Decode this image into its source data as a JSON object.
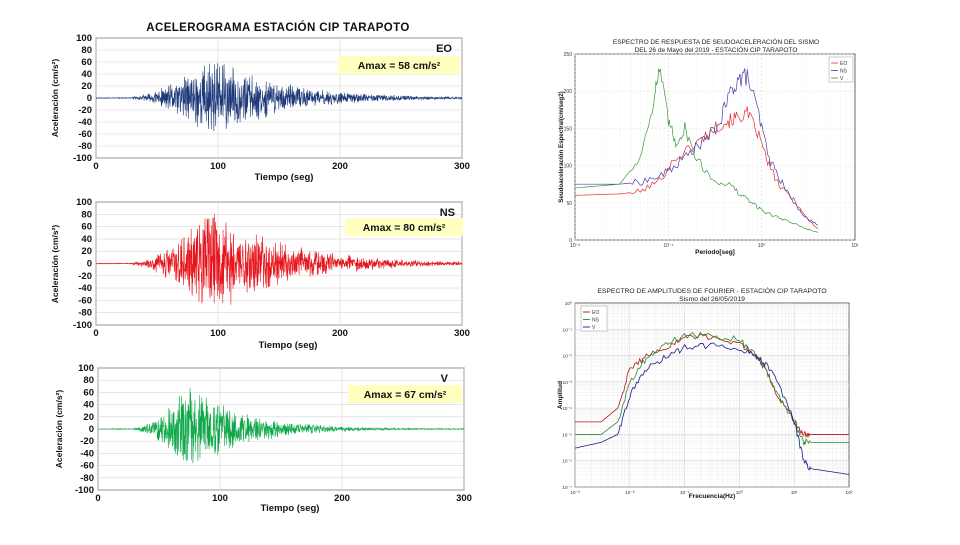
{
  "chart_data": [
    {
      "type": "line",
      "title": "ACELEROGRAMA ESTACIÓN CIP TARAPOTO",
      "component": "EO",
      "amax_label": "Amax = 58 cm/s²",
      "amax": 58,
      "xlabel": "Tiempo (seg)",
      "ylabel": "Aceleración (cm/s²)",
      "xlim": [
        0,
        300
      ],
      "ylim": [
        -100,
        100
      ],
      "xticks": [
        "0",
        "100",
        "200",
        "300"
      ],
      "yticks": [
        "100",
        "80",
        "60",
        "40",
        "20",
        "0",
        "-20",
        "-40",
        "-60",
        "-80",
        "-100"
      ],
      "color": "#1f3a7a",
      "signal": {
        "start": 30,
        "peak_time": 95,
        "amplitude": 58,
        "decay": 55,
        "seed": 11
      }
    },
    {
      "type": "line",
      "component": "NS",
      "amax_label": "Amax = 80 cm/s²",
      "amax": 80,
      "xlabel": "Tiempo (seg)",
      "ylabel": "Aceleración (cm/s²)",
      "xlim": [
        0,
        300
      ],
      "ylim": [
        -100,
        100
      ],
      "xticks": [
        "0",
        "100",
        "200",
        "300"
      ],
      "yticks": [
        "100",
        "80",
        "60",
        "40",
        "20",
        "0",
        "-20",
        "-40",
        "-60",
        "-80",
        "-100"
      ],
      "color": "#e8141c",
      "signal": {
        "start": 30,
        "peak_time": 95,
        "amplitude": 80,
        "decay": 60,
        "seed": 23
      }
    },
    {
      "type": "line",
      "component": "V",
      "amax_label": "Amax = 67 cm/s²",
      "amax": 67,
      "xlabel": "Tiempo (seg)",
      "ylabel": "Aceleración (cm/s²)",
      "xlim": [
        0,
        300
      ],
      "ylim": [
        -100,
        100
      ],
      "xticks": [
        "0",
        "100",
        "200",
        "300"
      ],
      "yticks": [
        "100",
        "80",
        "60",
        "40",
        "20",
        "0",
        "-20",
        "-40",
        "-60",
        "-80",
        "-100"
      ],
      "color": "#10a84a",
      "signal": {
        "start": 30,
        "peak_time": 75,
        "amplitude": 67,
        "decay": 45,
        "seed": 37
      }
    },
    {
      "type": "line",
      "title": "ESPECTRO DE RESPUESTA DE SEUDOACELERACIÓN DEL SISMO",
      "subtitle": "DEL 26 de Mayo del 2019 - ESTACIÓN CIP TARAPOTO",
      "xlabel": "Periodo[seg]",
      "ylabel": "Seudoaceleración Espectral(cm/seg2)",
      "xscale": "log",
      "xlim": [
        0.01,
        10
      ],
      "ylim": [
        0,
        250
      ],
      "yticks": [
        "0",
        "50",
        "100",
        "150",
        "200",
        "250"
      ],
      "xticks": [
        "10⁻²",
        "10⁻¹",
        "10⁰",
        "10¹"
      ],
      "legend_position": "top-right",
      "series": [
        {
          "name": "EO",
          "color": "#e03030",
          "x": [
            0.01,
            0.03,
            0.05,
            0.08,
            0.12,
            0.18,
            0.25,
            0.35,
            0.45,
            0.55,
            0.7,
            0.9,
            1.2,
            1.6,
            2.2,
            3.0,
            4.0
          ],
          "y": [
            60,
            62,
            65,
            80,
            110,
            125,
            140,
            155,
            160,
            165,
            170,
            145,
            100,
            70,
            55,
            30,
            15
          ]
        },
        {
          "name": "NS",
          "color": "#4b3fa8",
          "x": [
            0.01,
            0.03,
            0.05,
            0.08,
            0.12,
            0.18,
            0.25,
            0.35,
            0.45,
            0.55,
            0.7,
            0.9,
            1.2,
            1.6,
            2.2,
            3.0,
            4.0
          ],
          "y": [
            75,
            75,
            78,
            85,
            100,
            120,
            135,
            155,
            195,
            215,
            220,
            175,
            110,
            80,
            50,
            30,
            20
          ]
        },
        {
          "name": "V",
          "color": "#3a9a3a",
          "x": [
            0.01,
            0.03,
            0.05,
            0.07,
            0.08,
            0.1,
            0.12,
            0.15,
            0.2,
            0.3,
            0.45,
            0.6,
            0.8,
            1.0,
            1.5,
            2.0,
            3.0,
            4.0
          ],
          "y": [
            70,
            75,
            110,
            190,
            230,
            160,
            130,
            150,
            110,
            80,
            75,
            60,
            50,
            40,
            30,
            25,
            15,
            10
          ]
        }
      ]
    },
    {
      "type": "line",
      "title": "ESPECTRO DE AMPLITUDES DE FOURIER - ESTACIÓN CIP TARAPOTO",
      "subtitle": "Sismo del 26/05/2019",
      "xlabel": "Frecuencia(Hz)",
      "ylabel": "Amplitud",
      "xscale": "log",
      "yscale": "log",
      "xlim": [
        0.001,
        100
      ],
      "ylim": [
        1e-07,
        1.0
      ],
      "xticks": [
        "10⁻³",
        "10⁻²",
        "10⁻¹",
        "10⁰",
        "10¹",
        "10²"
      ],
      "yticks": [
        "10⁰",
        "10⁻¹",
        "10⁻²",
        "10⁻³",
        "10⁻⁴",
        "10⁻⁵",
        "10⁻⁶",
        "10⁻⁷"
      ],
      "legend_position": "top-left",
      "series": [
        {
          "name": "EO",
          "color": "#b01818",
          "x": [
            0.001,
            0.003,
            0.006,
            0.01,
            0.02,
            0.05,
            0.1,
            0.3,
            1,
            2,
            3,
            5,
            10,
            15,
            20,
            100
          ],
          "y": [
            3e-05,
            3e-05,
            0.0001,
            0.003,
            0.01,
            0.02,
            0.05,
            0.05,
            0.03,
            0.01,
            0.003,
            0.0003,
            3e-05,
            1e-05,
            1e-05,
            1e-05
          ]
        },
        {
          "name": "NS",
          "color": "#2a8a2a",
          "x": [
            0.001,
            0.003,
            0.006,
            0.01,
            0.02,
            0.05,
            0.1,
            0.3,
            1,
            2,
            3,
            5,
            10,
            15,
            20,
            100
          ],
          "y": [
            1e-05,
            1e-05,
            3e-05,
            0.001,
            0.008,
            0.03,
            0.06,
            0.06,
            0.04,
            0.01,
            0.003,
            0.0003,
            3e-05,
            5e-06,
            5e-06,
            5e-06
          ]
        },
        {
          "name": "V",
          "color": "#1a1a8a",
          "x": [
            0.001,
            0.003,
            0.006,
            0.01,
            0.02,
            0.05,
            0.1,
            0.3,
            1,
            2,
            3,
            5,
            10,
            15,
            20,
            100
          ],
          "y": [
            3e-06,
            5e-06,
            1e-05,
            0.0003,
            0.003,
            0.01,
            0.02,
            0.025,
            0.02,
            0.01,
            0.005,
            0.001,
            3e-05,
            1e-06,
            5e-07,
            3e-07
          ]
        }
      ]
    }
  ]
}
